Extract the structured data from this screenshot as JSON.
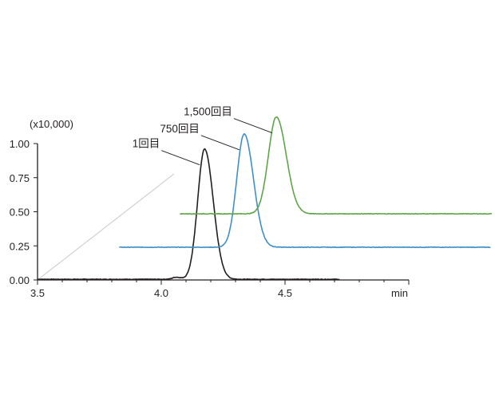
{
  "chart_data": {
    "type": "line",
    "multiplier_label": "(x10,000)",
    "x_unit": "min",
    "xlim": [
      3.5,
      5.0
    ],
    "ylim": [
      0,
      1.0
    ],
    "x_ticks": [
      "3.5",
      "4.0",
      "4.5"
    ],
    "y_ticks": [
      "0.00",
      "0.25",
      "0.50",
      "0.75",
      "1.00"
    ],
    "grid": false,
    "legend": "none",
    "series": [
      {
        "name": "1回目",
        "color": "#231f20",
        "offset_x": 0,
        "offset_y": 0,
        "baseline": 0.005,
        "peaks": [
          {
            "rt": 4.06,
            "height": 0.015,
            "width": 0.015
          },
          {
            "rt": 4.175,
            "height": 0.955,
            "width": 0.028
          }
        ],
        "x_range": [
          3.5,
          4.72
        ]
      },
      {
        "name": "750回目",
        "color": "#3f8fc7",
        "offset_x": 0.33,
        "offset_y": 0.25,
        "baseline": -0.01,
        "peaks": [
          {
            "rt": 4.005,
            "height": 0.83,
            "width": 0.03
          }
        ],
        "x_range": [
          3.5,
          5.0
        ]
      },
      {
        "name": "1,500回目",
        "color": "#5fa548",
        "offset_x": 0.575,
        "offset_y": 0.5,
        "baseline": -0.015,
        "peaks": [
          {
            "rt": 3.89,
            "height": 0.71,
            "width": 0.032
          }
        ],
        "x_range": [
          3.5,
          4.95
        ]
      }
    ]
  }
}
